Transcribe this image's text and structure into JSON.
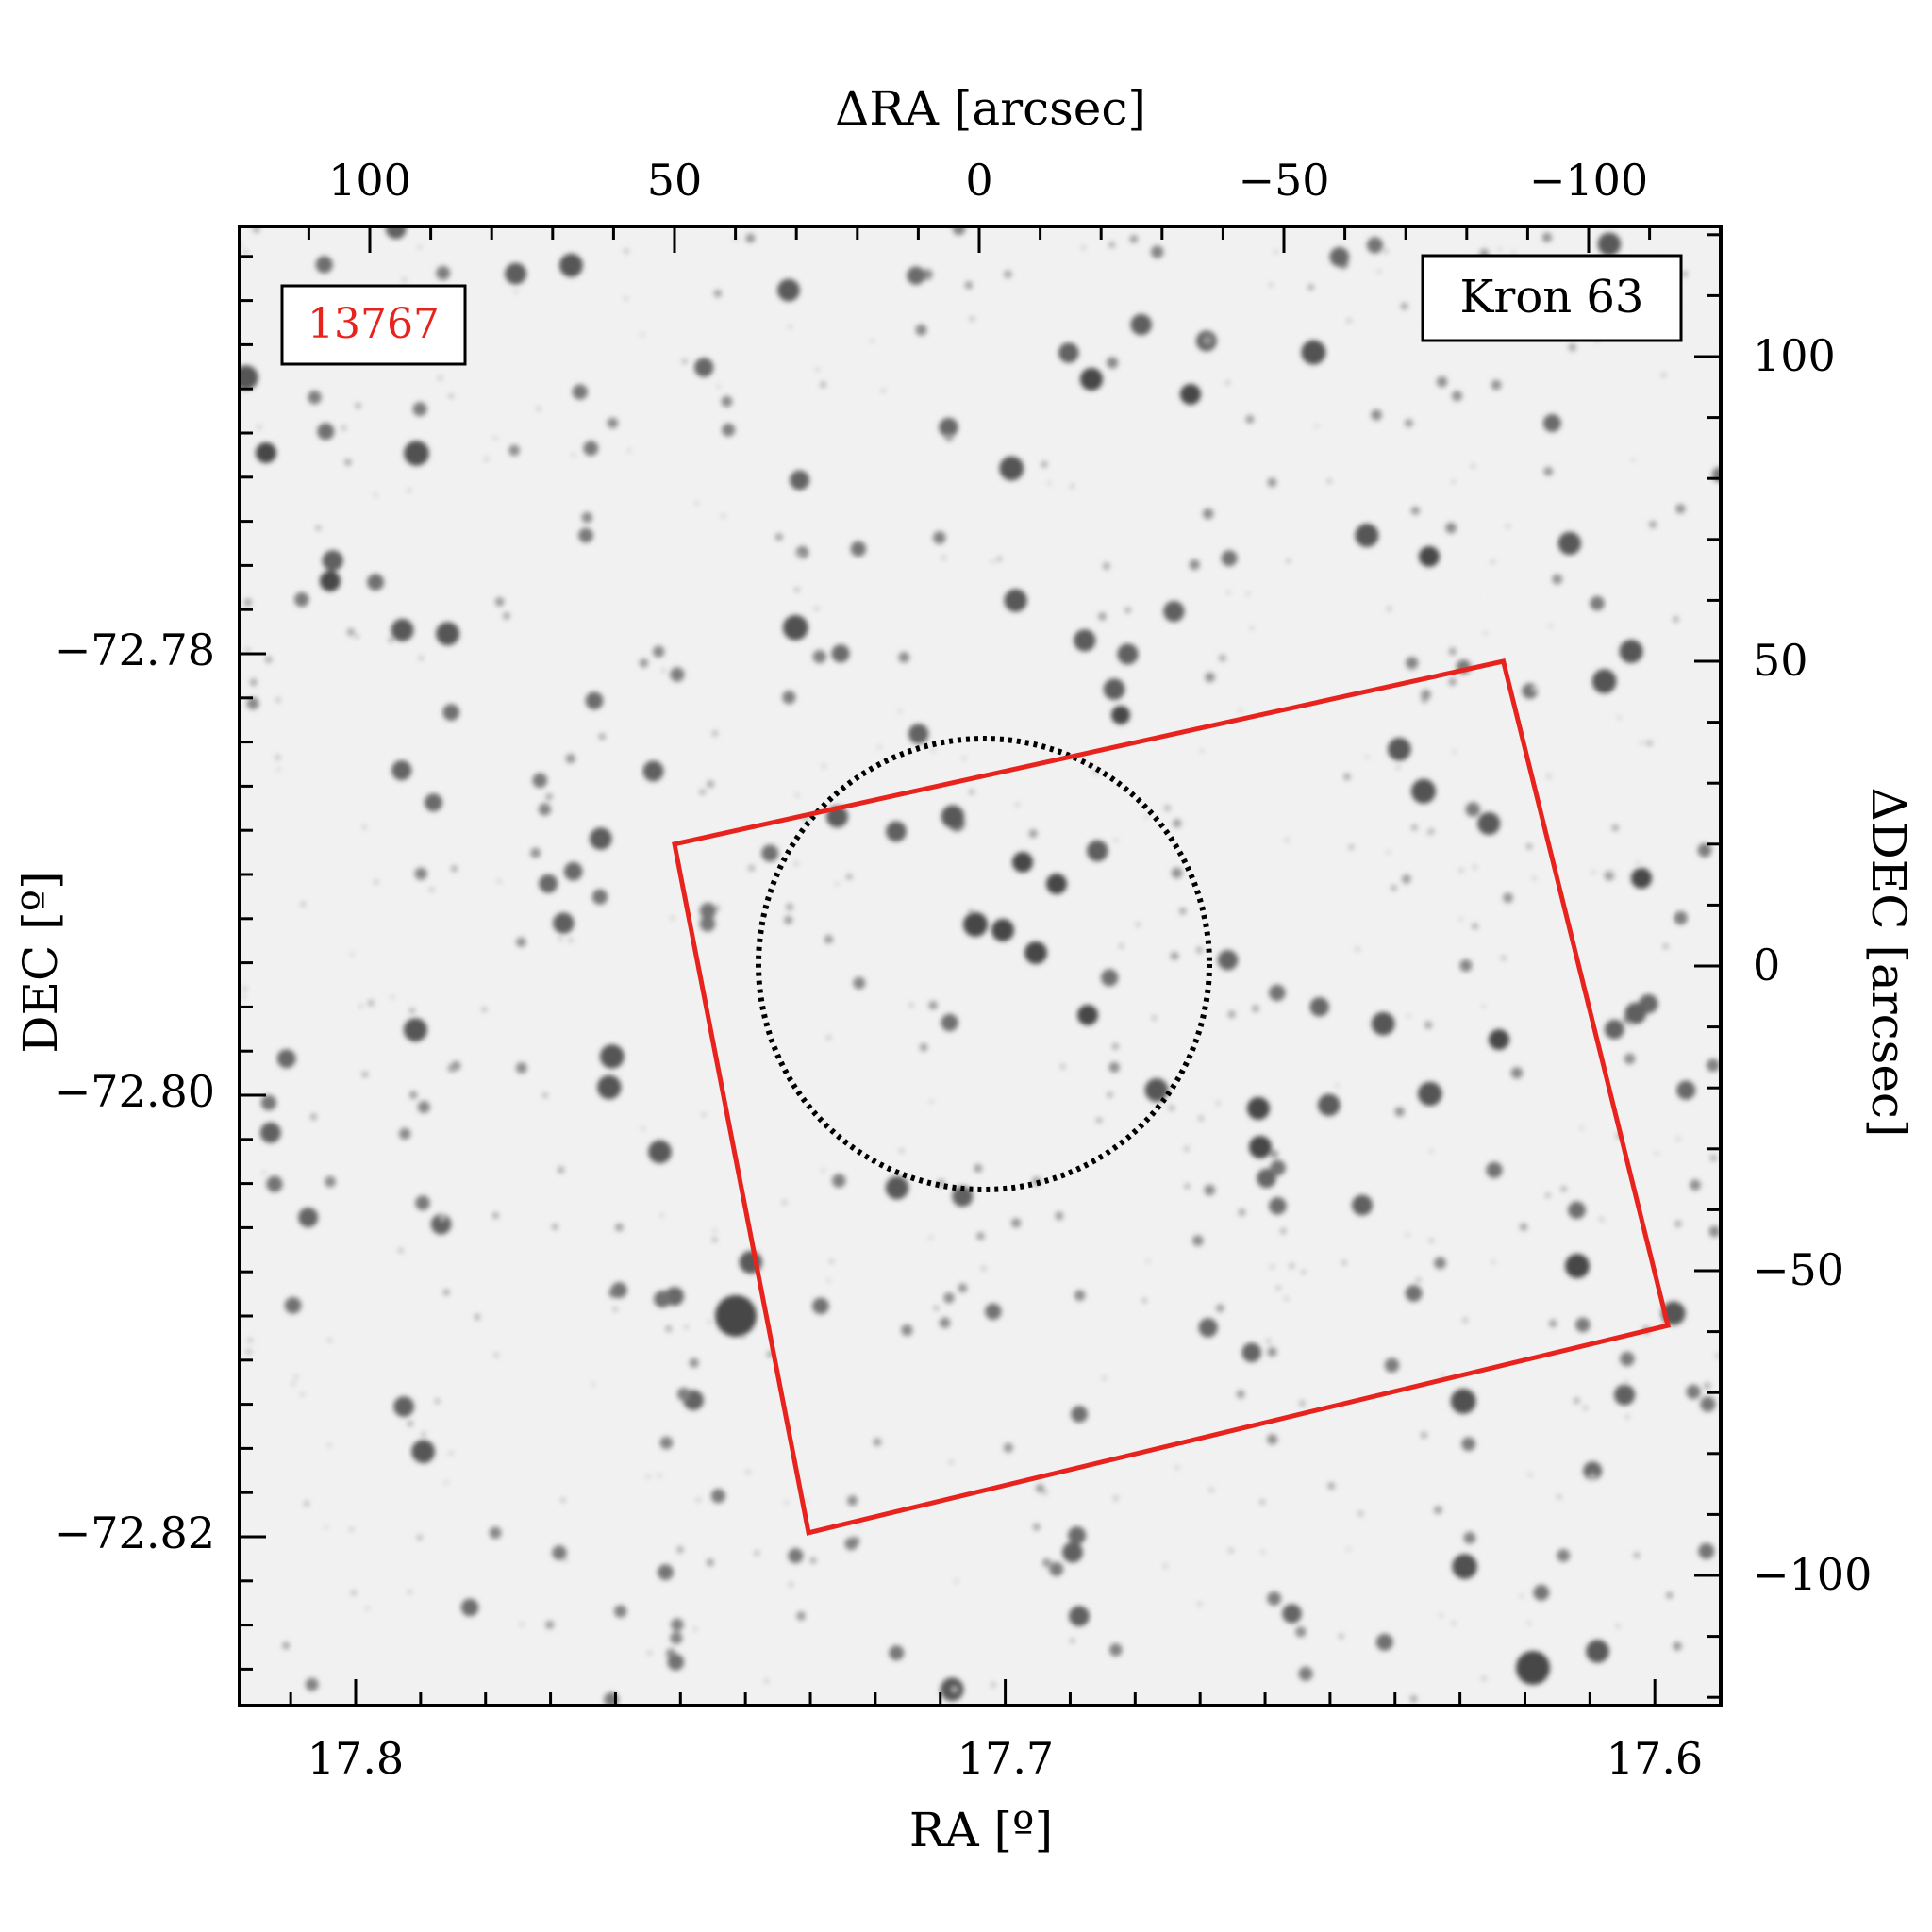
{
  "labels": {
    "top_axis": "ΔRA [arcsec]",
    "bottom_axis": "RA [º]",
    "left_axis": "DEC [º]",
    "right_axis": "ΔDEC [arcsec]",
    "field_id": "13767",
    "object_name": "Kron 63"
  },
  "ticks": {
    "top": [
      "100",
      "50",
      "0",
      "−50",
      "−100"
    ],
    "bottom": [
      "17.8",
      "17.7",
      "17.6"
    ],
    "left": [
      "−72.78",
      "−72.80",
      "−72.82"
    ],
    "right": [
      "100",
      "50",
      "0",
      "−50",
      "−100"
    ]
  },
  "axes": {
    "ra_range_deg": [
      17.82,
      17.592
    ],
    "dec_range_deg": [
      -72.8288,
      -72.7615
    ],
    "dra_range_arcsec": [
      120,
      -120
    ],
    "ddec_range_arcsec": [
      -121,
      121
    ]
  },
  "overlays": {
    "circle_radius_arcsec": 37,
    "circle_style": "dotted black",
    "footprint_color": "#e8221c",
    "footprint_corners_arcsec": [
      [
        50,
        20
      ],
      [
        -86,
        50
      ],
      [
        -113,
        -59
      ],
      [
        28,
        -93
      ]
    ]
  },
  "colors": {
    "field_id_text": "#e8221c",
    "footprint": "#e8221c",
    "background_sky": "#f3f3f3"
  }
}
